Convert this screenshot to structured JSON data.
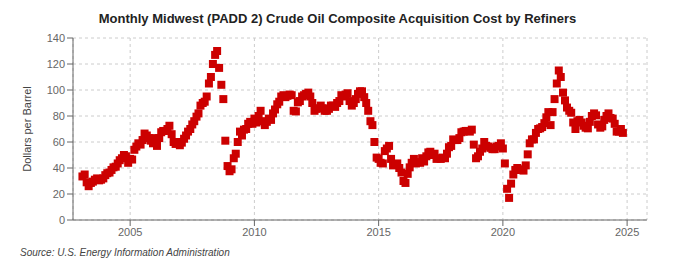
{
  "chart_data": {
    "type": "scatter",
    "title": "Monthly Midwest (PADD 2) Crude Oil Composite Acquisition Cost by Refiners",
    "y_label": "Dollars per Barrel",
    "annotation": "Source: U.S. Energy Information Administration",
    "color": "#cc0000",
    "marker": "square",
    "grid": true,
    "xlim": [
      2002.7,
      2025.8
    ],
    "xticks": [
      2005,
      2010,
      2015,
      2020,
      2025
    ],
    "ylim": [
      0,
      140
    ],
    "yticks": [
      0,
      20,
      40,
      60,
      80,
      100,
      120,
      140
    ],
    "x": [
      2003.08,
      2003.17,
      2003.25,
      2003.33,
      2003.42,
      2003.5,
      2003.58,
      2003.67,
      2003.75,
      2003.83,
      2003.92,
      2004.0,
      2004.08,
      2004.17,
      2004.25,
      2004.33,
      2004.42,
      2004.5,
      2004.58,
      2004.67,
      2004.75,
      2004.83,
      2004.92,
      2005.0,
      2005.08,
      2005.17,
      2005.25,
      2005.33,
      2005.42,
      2005.5,
      2005.58,
      2005.67,
      2005.75,
      2005.83,
      2005.92,
      2006.0,
      2006.08,
      2006.17,
      2006.25,
      2006.33,
      2006.42,
      2006.5,
      2006.58,
      2006.67,
      2006.75,
      2006.83,
      2006.92,
      2007.0,
      2007.08,
      2007.17,
      2007.25,
      2007.33,
      2007.42,
      2007.5,
      2007.58,
      2007.67,
      2007.75,
      2007.83,
      2007.92,
      2008.0,
      2008.08,
      2008.17,
      2008.25,
      2008.33,
      2008.42,
      2008.5,
      2008.58,
      2008.67,
      2008.75,
      2008.83,
      2008.92,
      2009.0,
      2009.08,
      2009.17,
      2009.25,
      2009.33,
      2009.42,
      2009.5,
      2009.58,
      2009.67,
      2009.75,
      2009.83,
      2009.92,
      2010.0,
      2010.08,
      2010.17,
      2010.25,
      2010.33,
      2010.42,
      2010.5,
      2010.58,
      2010.67,
      2010.75,
      2010.83,
      2010.92,
      2011.0,
      2011.08,
      2011.17,
      2011.25,
      2011.33,
      2011.42,
      2011.5,
      2011.58,
      2011.67,
      2011.75,
      2011.83,
      2011.92,
      2012.0,
      2012.08,
      2012.17,
      2012.25,
      2012.33,
      2012.42,
      2012.5,
      2012.58,
      2012.67,
      2012.75,
      2012.83,
      2012.92,
      2013.0,
      2013.08,
      2013.17,
      2013.25,
      2013.33,
      2013.42,
      2013.5,
      2013.58,
      2013.67,
      2013.75,
      2013.83,
      2013.92,
      2014.0,
      2014.08,
      2014.17,
      2014.25,
      2014.33,
      2014.42,
      2014.5,
      2014.58,
      2014.67,
      2014.75,
      2014.83,
      2014.92,
      2015.0,
      2015.08,
      2015.17,
      2015.25,
      2015.33,
      2015.42,
      2015.5,
      2015.58,
      2015.67,
      2015.75,
      2015.83,
      2015.92,
      2016.0,
      2016.08,
      2016.17,
      2016.25,
      2016.33,
      2016.42,
      2016.5,
      2016.58,
      2016.67,
      2016.75,
      2016.83,
      2016.92,
      2017.0,
      2017.08,
      2017.17,
      2017.25,
      2017.33,
      2017.42,
      2017.5,
      2017.58,
      2017.67,
      2017.75,
      2017.83,
      2017.92,
      2018.0,
      2018.08,
      2018.17,
      2018.25,
      2018.33,
      2018.42,
      2018.5,
      2018.58,
      2018.67,
      2018.75,
      2018.83,
      2018.92,
      2019.0,
      2019.08,
      2019.17,
      2019.25,
      2019.33,
      2019.42,
      2019.5,
      2019.58,
      2019.67,
      2019.75,
      2019.83,
      2019.92,
      2020.0,
      2020.08,
      2020.17,
      2020.25,
      2020.33,
      2020.42,
      2020.5,
      2020.58,
      2020.67,
      2020.75,
      2020.83,
      2020.92,
      2021.0,
      2021.08,
      2021.17,
      2021.25,
      2021.33,
      2021.42,
      2021.5,
      2021.58,
      2021.67,
      2021.75,
      2021.83,
      2021.92,
      2022.0,
      2022.08,
      2022.17,
      2022.25,
      2022.33,
      2022.42,
      2022.5,
      2022.58,
      2022.67,
      2022.75,
      2022.83,
      2022.92,
      2023.0,
      2023.08,
      2023.17,
      2023.25,
      2023.33,
      2023.42,
      2023.5,
      2023.58,
      2023.67,
      2023.75,
      2023.83,
      2023.92,
      2024.0,
      2024.08,
      2024.17,
      2024.25,
      2024.33,
      2024.42,
      2024.5,
      2024.58,
      2024.67,
      2024.75,
      2024.83
    ],
    "values": [
      33.5,
      35.0,
      29.0,
      26.0,
      28.5,
      29.5,
      31.0,
      32.0,
      30.5,
      31.0,
      32.0,
      34.5,
      36.0,
      36.5,
      38.5,
      40.5,
      41.0,
      43.5,
      46.0,
      47.5,
      50.0,
      49.0,
      44.0,
      47.0,
      46.5,
      54.0,
      56.5,
      59.0,
      58.0,
      61.5,
      66.5,
      65.0,
      63.0,
      61.0,
      59.0,
      63.0,
      57.0,
      63.0,
      67.5,
      68.5,
      68.5,
      70.0,
      72.5,
      66.0,
      60.0,
      58.5,
      60.0,
      57.5,
      59.5,
      62.5,
      65.0,
      68.0,
      70.0,
      73.5,
      76.0,
      79.5,
      82.0,
      88.0,
      90.0,
      91.0,
      95.0,
      105.0,
      110.0,
      120.0,
      127.0,
      130.0,
      117.0,
      104.0,
      93.0,
      61.0,
      41.5,
      37.5,
      39.0,
      47.5,
      51.0,
      60.0,
      68.0,
      65.0,
      69.5,
      70.0,
      74.0,
      75.5,
      74.0,
      78.0,
      75.0,
      80.0,
      84.0,
      76.0,
      73.0,
      75.5,
      78.0,
      77.0,
      82.0,
      85.0,
      89.0,
      91.0,
      95.0,
      96.0,
      94.5,
      95.5,
      96.5,
      96.0,
      84.0,
      83.5,
      90.5,
      91.5,
      95.0,
      96.0,
      97.0,
      98.0,
      95.0,
      90.0,
      84.0,
      85.5,
      86.0,
      88.0,
      86.0,
      84.0,
      84.0,
      85.5,
      88.0,
      88.0,
      87.0,
      90.0,
      91.5,
      96.0,
      95.0,
      96.5,
      97.5,
      91.5,
      88.0,
      90.0,
      93.0,
      97.0,
      99.0,
      99.0,
      94.5,
      90.0,
      84.0,
      76.0,
      73.0,
      60.0,
      48.0,
      47.0,
      44.0,
      43.5,
      53.0,
      55.0,
      57.0,
      47.0,
      42.0,
      43.0,
      43.5,
      40.0,
      36.5,
      30.0,
      28.5,
      35.5,
      40.5,
      44.0,
      47.0,
      43.5,
      44.5,
      44.0,
      47.5,
      45.0,
      49.0,
      52.0,
      52.5,
      50.0,
      51.0,
      47.0,
      47.5,
      47.0,
      48.0,
      47.5,
      51.0,
      56.0,
      57.0,
      62.0,
      61.5,
      61.5,
      63.0,
      67.5,
      68.0,
      68.5,
      68.5,
      68.0,
      69.5,
      58.0,
      47.5,
      49.0,
      52.5,
      55.0,
      60.0,
      57.0,
      56.5,
      55.5,
      54.5,
      54.5,
      56.5,
      57.0,
      59.0,
      55.0,
      43.5,
      24.0,
      17.0,
      28.0,
      35.0,
      38.5,
      40.0,
      38.5,
      39.0,
      38.0,
      42.0,
      50.5,
      59.0,
      62.0,
      62.0,
      67.0,
      70.0,
      70.5,
      71.5,
      74.5,
      79.0,
      83.0,
      73.0,
      83.0,
      93.0,
      105.0,
      115.0,
      110.0,
      98.0,
      92.0,
      86.5,
      84.0,
      82.5,
      75.0,
      70.0,
      76.0,
      77.0,
      75.0,
      72.5,
      71.0,
      70.5,
      75.5,
      80.0,
      82.0,
      80.5,
      73.5,
      71.0,
      72.0,
      77.0,
      80.0,
      82.0,
      78.5,
      78.0,
      74.0,
      68.0,
      68.0,
      70.0,
      67.0
    ]
  }
}
